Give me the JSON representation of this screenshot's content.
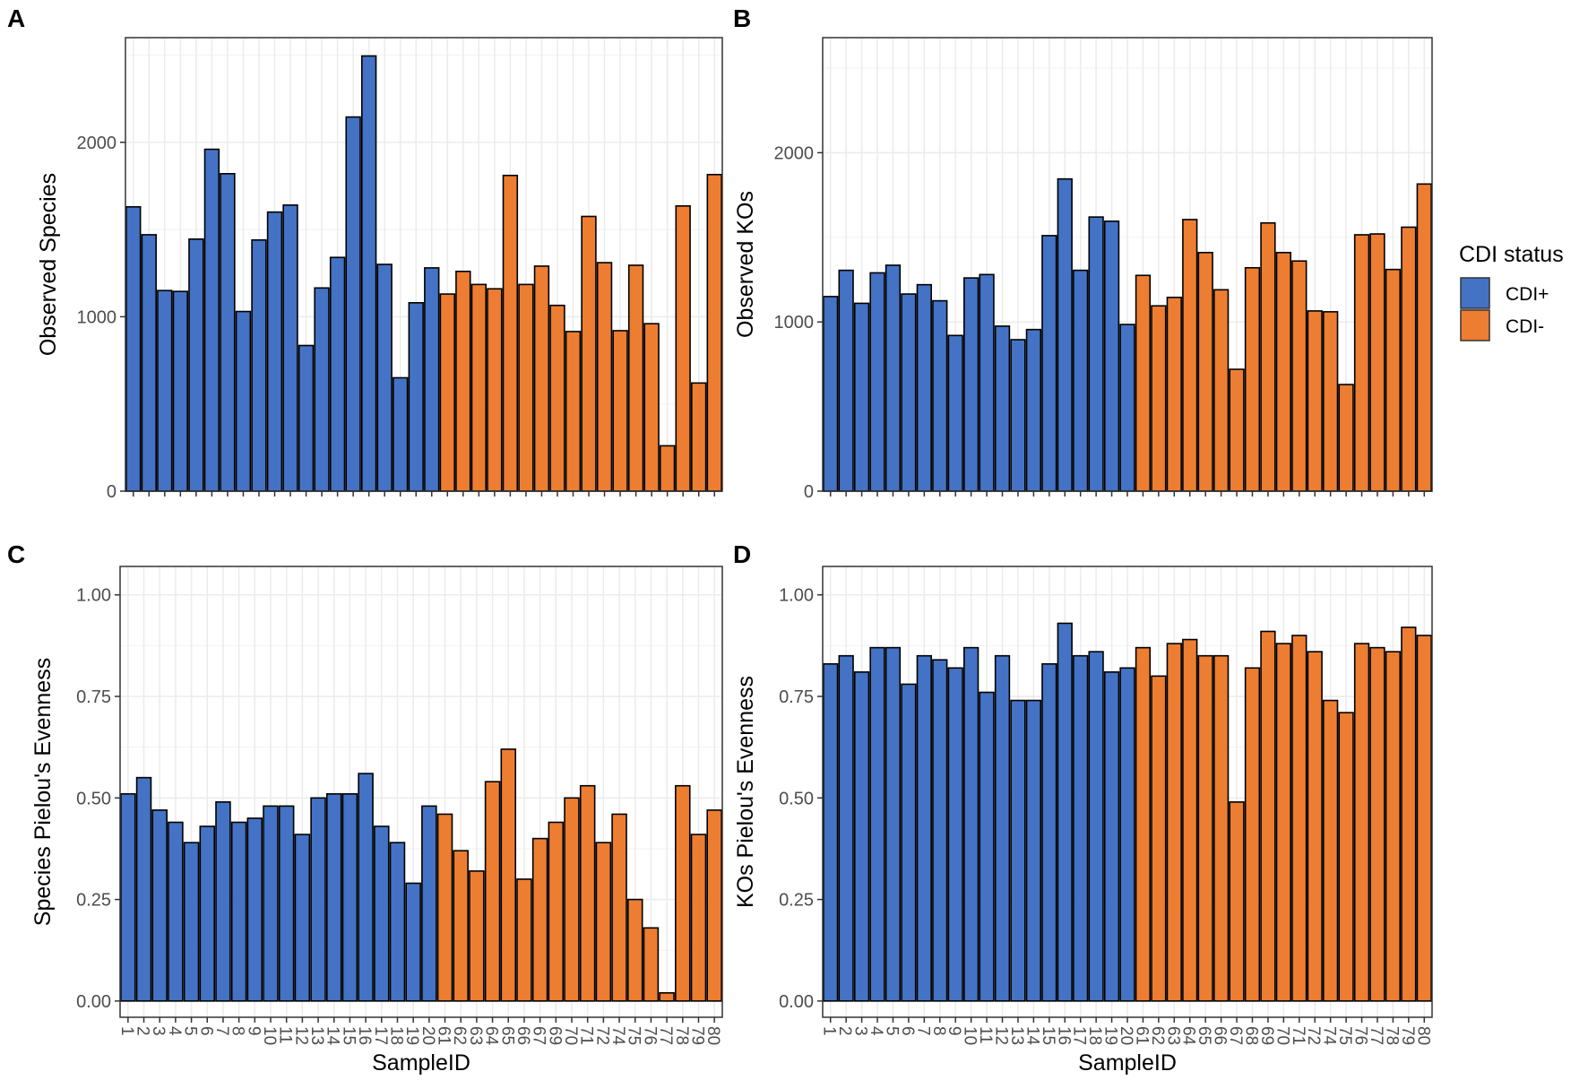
{
  "colors": {
    "cdi_pos": "#4472c4",
    "cdi_neg": "#ed7d31",
    "grid": "#ebebeb",
    "border": "#333333"
  },
  "legend": {
    "title": "CDI status",
    "items": [
      {
        "label": "CDI+",
        "color": "#4472c4"
      },
      {
        "label": "CDI-",
        "color": "#ed7d31"
      }
    ]
  },
  "chart_data": [
    {
      "panel": "A",
      "type": "bar",
      "ylabel": "Observed Species",
      "xlabel": "",
      "ylim": [
        0,
        2600
      ],
      "yticks": [
        "0",
        "1000",
        "2000"
      ],
      "ytick_values": [
        0,
        1000,
        2000
      ],
      "show_xtick_labels": false,
      "categories": [
        "1",
        "2",
        "3",
        "4",
        "5",
        "6",
        "7",
        "8",
        "9",
        "10",
        "11",
        "12",
        "13",
        "14",
        "15",
        "16",
        "17",
        "18",
        "19",
        "20",
        "61",
        "62",
        "63",
        "64",
        "65",
        "66",
        "67",
        "69",
        "70",
        "71",
        "72",
        "74",
        "75",
        "76",
        "77",
        "78",
        "79",
        "80"
      ],
      "groups": [
        "CDI+",
        "CDI+",
        "CDI+",
        "CDI+",
        "CDI+",
        "CDI+",
        "CDI+",
        "CDI+",
        "CDI+",
        "CDI+",
        "CDI+",
        "CDI+",
        "CDI+",
        "CDI+",
        "CDI+",
        "CDI+",
        "CDI+",
        "CDI+",
        "CDI+",
        "CDI+",
        "CDI-",
        "CDI-",
        "CDI-",
        "CDI-",
        "CDI-",
        "CDI-",
        "CDI-",
        "CDI-",
        "CDI-",
        "CDI-",
        "CDI-",
        "CDI-",
        "CDI-",
        "CDI-",
        "CDI-",
        "CDI-",
        "CDI-",
        "CDI-"
      ],
      "values": [
        1630,
        1470,
        1150,
        1145,
        1445,
        1960,
        1820,
        1030,
        1440,
        1600,
        1640,
        835,
        1165,
        1340,
        2145,
        2495,
        1300,
        650,
        1080,
        1280,
        1130,
        1260,
        1185,
        1160,
        1810,
        1185,
        1290,
        1065,
        915,
        1575,
        1310,
        920,
        1295,
        960,
        260,
        1635,
        620,
        1815
      ]
    },
    {
      "panel": "B",
      "type": "bar",
      "ylabel": "Observed KOs",
      "xlabel": "",
      "ylim": [
        0,
        2680
      ],
      "yticks": [
        "0",
        "1000",
        "2000"
      ],
      "ytick_values": [
        0,
        1000,
        2000
      ],
      "show_xtick_labels": false,
      "categories": [
        "1",
        "2",
        "3",
        "4",
        "5",
        "6",
        "7",
        "8",
        "9",
        "10",
        "11",
        "12",
        "13",
        "14",
        "15",
        "16",
        "17",
        "18",
        "19",
        "20",
        "61",
        "62",
        "63",
        "64",
        "65",
        "66",
        "67",
        "68",
        "69",
        "70",
        "71",
        "72",
        "74",
        "75",
        "76",
        "77",
        "78",
        "79",
        "80"
      ],
      "groups": [
        "CDI+",
        "CDI+",
        "CDI+",
        "CDI+",
        "CDI+",
        "CDI+",
        "CDI+",
        "CDI+",
        "CDI+",
        "CDI+",
        "CDI+",
        "CDI+",
        "CDI+",
        "CDI+",
        "CDI+",
        "CDI+",
        "CDI+",
        "CDI+",
        "CDI+",
        "CDI+",
        "CDI-",
        "CDI-",
        "CDI-",
        "CDI-",
        "CDI-",
        "CDI-",
        "CDI-",
        "CDI-",
        "CDI-",
        "CDI-",
        "CDI-",
        "CDI-",
        "CDI-",
        "CDI-",
        "CDI-",
        "CDI-",
        "CDI-",
        "CDI-",
        "CDI-"
      ],
      "values": [
        1150,
        1305,
        1110,
        1290,
        1335,
        1165,
        1220,
        1125,
        920,
        1260,
        1280,
        975,
        895,
        955,
        1510,
        1845,
        1305,
        1620,
        1595,
        985,
        1275,
        1095,
        1145,
        1605,
        1410,
        1190,
        720,
        1320,
        1585,
        1410,
        1360,
        1065,
        1060,
        630,
        1515,
        1520,
        1310,
        1560,
        1815
      ]
    },
    {
      "panel": "C",
      "type": "bar",
      "ylabel": "Species Pielou's Evenness",
      "xlabel": "SampleID",
      "ylim": [
        -0.04,
        1.07
      ],
      "yticks": [
        "0.00",
        "0.25",
        "0.50",
        "0.75",
        "1.00"
      ],
      "ytick_values": [
        0,
        0.25,
        0.5,
        0.75,
        1.0
      ],
      "show_xtick_labels": true,
      "categories": [
        "1",
        "2",
        "3",
        "4",
        "5",
        "6",
        "7",
        "8",
        "9",
        "10",
        "11",
        "12",
        "13",
        "14",
        "15",
        "16",
        "17",
        "18",
        "19",
        "20",
        "61",
        "62",
        "63",
        "64",
        "65",
        "66",
        "67",
        "69",
        "70",
        "71",
        "72",
        "74",
        "75",
        "76",
        "77",
        "78",
        "79",
        "80"
      ],
      "groups": [
        "CDI+",
        "CDI+",
        "CDI+",
        "CDI+",
        "CDI+",
        "CDI+",
        "CDI+",
        "CDI+",
        "CDI+",
        "CDI+",
        "CDI+",
        "CDI+",
        "CDI+",
        "CDI+",
        "CDI+",
        "CDI+",
        "CDI+",
        "CDI+",
        "CDI+",
        "CDI+",
        "CDI-",
        "CDI-",
        "CDI-",
        "CDI-",
        "CDI-",
        "CDI-",
        "CDI-",
        "CDI-",
        "CDI-",
        "CDI-",
        "CDI-",
        "CDI-",
        "CDI-",
        "CDI-",
        "CDI-",
        "CDI-",
        "CDI-",
        "CDI-"
      ],
      "values": [
        0.51,
        0.55,
        0.47,
        0.44,
        0.39,
        0.43,
        0.49,
        0.44,
        0.45,
        0.48,
        0.48,
        0.41,
        0.5,
        0.51,
        0.51,
        0.56,
        0.43,
        0.39,
        0.29,
        0.48,
        0.46,
        0.37,
        0.32,
        0.54,
        0.62,
        0.3,
        0.4,
        0.44,
        0.5,
        0.53,
        0.39,
        0.46,
        0.25,
        0.18,
        0.02,
        0.53,
        0.41,
        0.47
      ]
    },
    {
      "panel": "D",
      "type": "bar",
      "ylabel": "KOs Pielou's Evenness",
      "xlabel": "SampleID",
      "ylim": [
        -0.04,
        1.07
      ],
      "yticks": [
        "0.00",
        "0.25",
        "0.50",
        "0.75",
        "1.00"
      ],
      "ytick_values": [
        0,
        0.25,
        0.5,
        0.75,
        1.0
      ],
      "show_xtick_labels": true,
      "categories": [
        "1",
        "2",
        "3",
        "4",
        "5",
        "6",
        "7",
        "8",
        "9",
        "10",
        "11",
        "12",
        "13",
        "14",
        "15",
        "16",
        "17",
        "18",
        "19",
        "20",
        "61",
        "62",
        "63",
        "64",
        "65",
        "66",
        "67",
        "68",
        "69",
        "70",
        "71",
        "72",
        "74",
        "75",
        "76",
        "77",
        "78",
        "79",
        "80"
      ],
      "groups": [
        "CDI+",
        "CDI+",
        "CDI+",
        "CDI+",
        "CDI+",
        "CDI+",
        "CDI+",
        "CDI+",
        "CDI+",
        "CDI+",
        "CDI+",
        "CDI+",
        "CDI+",
        "CDI+",
        "CDI+",
        "CDI+",
        "CDI+",
        "CDI+",
        "CDI+",
        "CDI+",
        "CDI-",
        "CDI-",
        "CDI-",
        "CDI-",
        "CDI-",
        "CDI-",
        "CDI-",
        "CDI-",
        "CDI-",
        "CDI-",
        "CDI-",
        "CDI-",
        "CDI-",
        "CDI-",
        "CDI-",
        "CDI-",
        "CDI-",
        "CDI-",
        "CDI-"
      ],
      "values": [
        0.83,
        0.85,
        0.81,
        0.87,
        0.87,
        0.78,
        0.85,
        0.84,
        0.82,
        0.87,
        0.76,
        0.85,
        0.74,
        0.74,
        0.83,
        0.93,
        0.85,
        0.86,
        0.81,
        0.82,
        0.87,
        0.8,
        0.88,
        0.89,
        0.85,
        0.85,
        0.49,
        0.82,
        0.91,
        0.88,
        0.9,
        0.86,
        0.74,
        0.71,
        0.88,
        0.87,
        0.86,
        0.92,
        0.9
      ]
    }
  ]
}
